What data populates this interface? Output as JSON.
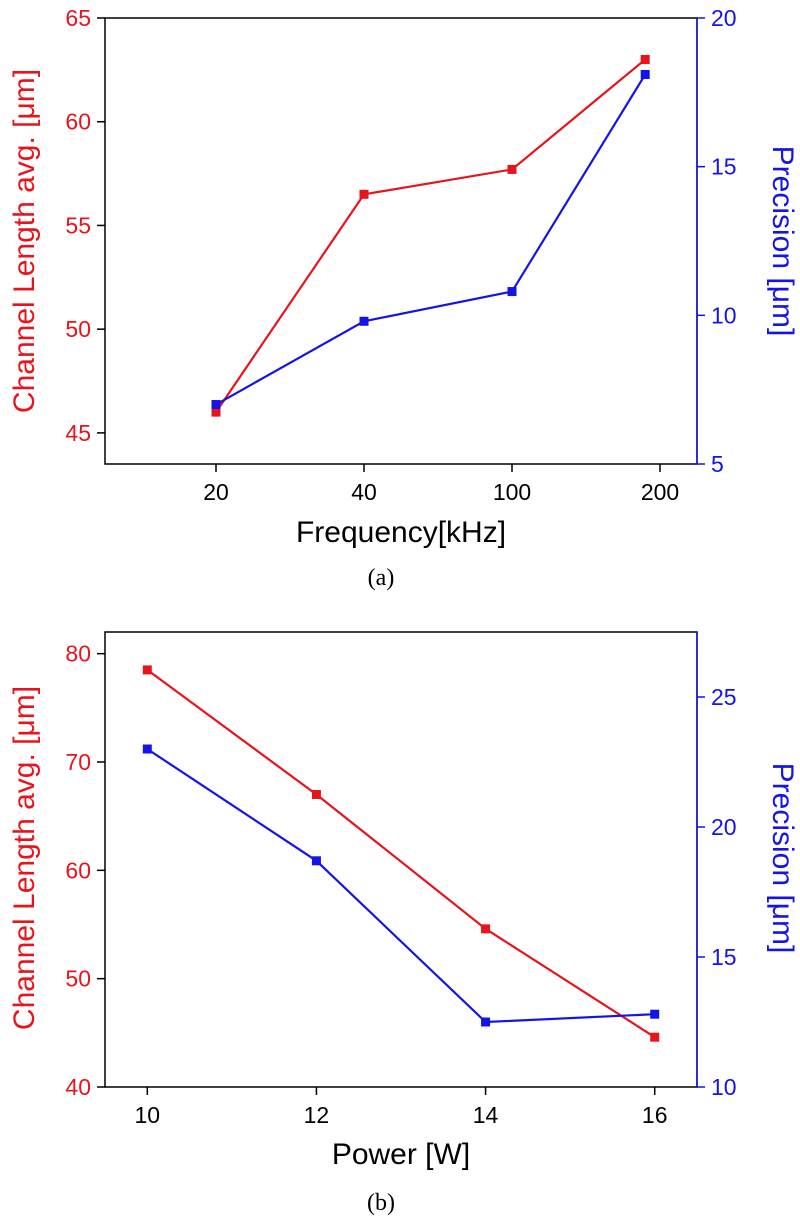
{
  "colors": {
    "left": "#e8141b",
    "right": "#1414e8",
    "axis": "#000000"
  },
  "chart_data": [
    {
      "type": "line",
      "caption": "(a)",
      "xlabel": "Frequency[kHz]",
      "ylabel_left": "Channel Length avg. [μm]",
      "ylabel_right": "Precision [μm]",
      "categories": [
        "20",
        "40",
        "100",
        "200"
      ],
      "x_positions": [
        0,
        1,
        2,
        3
      ],
      "x_range": [
        -0.75,
        3.25
      ],
      "ylim_left": [
        43.5,
        65
      ],
      "ylim_right": [
        5,
        20
      ],
      "yticks_left": [
        45,
        50,
        55,
        60,
        65
      ],
      "yticks_right": [
        5,
        10,
        15,
        20
      ],
      "series": [
        {
          "name": "Channel Length avg.",
          "axis": "left",
          "color": "#e8141b",
          "x": [
            0,
            1,
            2,
            2.9
          ],
          "values": [
            46,
            56.5,
            57.7,
            63
          ]
        },
        {
          "name": "Precision",
          "axis": "right",
          "color": "#1414e8",
          "x": [
            0,
            1,
            2,
            2.9
          ],
          "values": [
            7.0,
            9.8,
            10.8,
            18.1
          ]
        }
      ]
    },
    {
      "type": "line",
      "caption": "(b)",
      "xlabel": "Power [W]",
      "ylabel_left": "Channel Length avg. [μm]",
      "ylabel_right": "Precision [μm]",
      "categories": [
        "10",
        "12",
        "14",
        "16"
      ],
      "x_positions": [
        10,
        12,
        14,
        16
      ],
      "x_range": [
        9.5,
        16.5
      ],
      "ylim_left": [
        40,
        82
      ],
      "ylim_right": [
        10,
        27.5
      ],
      "yticks_left": [
        40,
        50,
        60,
        70,
        80
      ],
      "yticks_right": [
        10,
        15,
        20,
        25
      ],
      "series": [
        {
          "name": "Channel Length avg.",
          "axis": "left",
          "color": "#e8141b",
          "x": [
            10,
            12,
            14,
            16
          ],
          "values": [
            78.5,
            67,
            54.6,
            44.6
          ]
        },
        {
          "name": "Precision",
          "axis": "right",
          "color": "#1414e8",
          "x": [
            10,
            12,
            14,
            16
          ],
          "values": [
            23,
            18.7,
            12.5,
            12.8
          ]
        }
      ]
    }
  ]
}
